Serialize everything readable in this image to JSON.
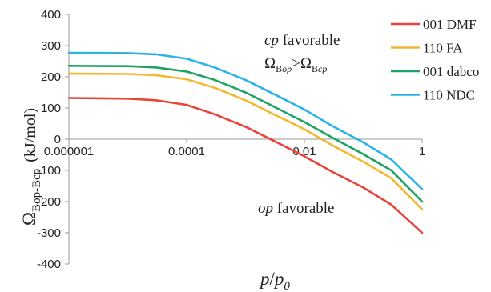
{
  "chart_data": {
    "type": "line",
    "xscale": "log",
    "xlim": [
      1e-06,
      1
    ],
    "ylim": [
      -400,
      400
    ],
    "x_ticks": [
      1e-06,
      0.0001,
      0.01,
      1
    ],
    "x_tick_labels": [
      "0.000001",
      "0.0001",
      "0.01",
      "1"
    ],
    "y_ticks": [
      400,
      300,
      200,
      100,
      0,
      -100,
      -200,
      -300,
      -400
    ],
    "y_tick_labels": [
      "400",
      "300",
      "200",
      "100",
      "0",
      "-100",
      "-200",
      "-300",
      "-400"
    ],
    "grid": false,
    "legend_position": "top-right",
    "xlabel": {
      "main": "p",
      "mid": "/",
      "main2": "p",
      "sub": "0"
    },
    "ylabel": {
      "main": "Ω",
      "sub": "Bop-Bcp",
      "units": "(kJ/mol)"
    },
    "annotations": {
      "cp": {
        "italic": "cp",
        "rest": " favorable"
      },
      "omega": {
        "sym1": "Ω",
        "sub1a": "B",
        "sub1b": "op",
        "gt": ">",
        "sym2": "Ω",
        "sub2a": "B",
        "sub2b": "cp"
      },
      "op": {
        "italic": "op",
        "rest": " favorable"
      }
    },
    "series": [
      {
        "name": "001 DMF",
        "color": "#e8443a",
        "x": [
          1e-06,
          1e-05,
          3e-05,
          0.0001,
          0.0003,
          0.001,
          0.003,
          0.01,
          0.03,
          0.1,
          0.3,
          1
        ],
        "y": [
          132,
          130,
          125,
          110,
          80,
          40,
          -5,
          -55,
          -105,
          -155,
          -210,
          -300
        ]
      },
      {
        "name": "110 FA",
        "color": "#f5b730",
        "x": [
          1e-06,
          1e-05,
          3e-05,
          0.0001,
          0.0003,
          0.001,
          0.003,
          0.01,
          0.03,
          0.1,
          0.3,
          1
        ],
        "y": [
          210,
          209,
          205,
          192,
          165,
          125,
          80,
          32,
          -20,
          -72,
          -125,
          -225
        ]
      },
      {
        "name": "001 dabco",
        "color": "#1ea365",
        "x": [
          1e-06,
          1e-05,
          3e-05,
          0.0001,
          0.0003,
          0.001,
          0.003,
          0.01,
          0.03,
          0.1,
          0.3,
          1
        ],
        "y": [
          235,
          234,
          230,
          217,
          190,
          150,
          105,
          55,
          5,
          -48,
          -100,
          -200
        ]
      },
      {
        "name": "110 NDC",
        "color": "#2ab3e6",
        "x": [
          1e-06,
          1e-05,
          3e-05,
          0.0001,
          0.0003,
          0.001,
          0.003,
          0.01,
          0.03,
          0.1,
          0.3,
          1
        ],
        "y": [
          277,
          276,
          272,
          258,
          230,
          190,
          145,
          95,
          42,
          -10,
          -65,
          -160
        ]
      }
    ]
  }
}
